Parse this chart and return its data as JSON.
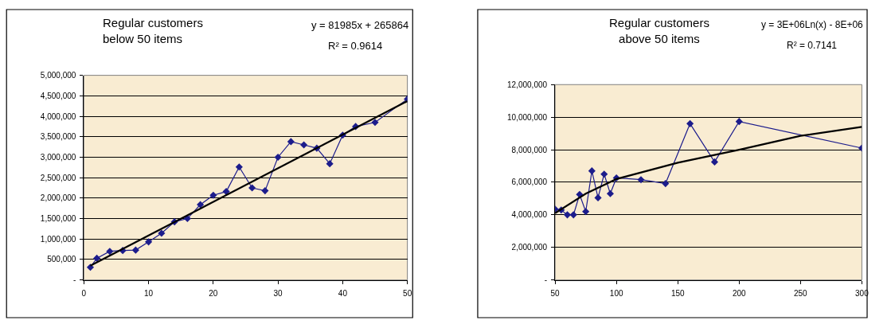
{
  "chart_data": [
    {
      "type": "line",
      "title": "Regular customers\nbelow 50 items",
      "annotations": [
        "y = 81985x + 265864",
        "R² = 0.9614"
      ],
      "xlim": [
        0,
        50
      ],
      "xticks": [
        0,
        10,
        20,
        30,
        40,
        50
      ],
      "ylim": [
        0,
        5000000
      ],
      "yticks": [
        {
          "value": 0,
          "label": "-"
        },
        {
          "value": 500000,
          "label": "500,000"
        },
        {
          "value": 1000000,
          "label": "1,000,000"
        },
        {
          "value": 1500000,
          "label": "1,500,000"
        },
        {
          "value": 2000000,
          "label": "2,000,000"
        },
        {
          "value": 2500000,
          "label": "2,500,000"
        },
        {
          "value": 3000000,
          "label": "3,000,000"
        },
        {
          "value": 3500000,
          "label": "3,500,000"
        },
        {
          "value": 4000000,
          "label": "4,000,000"
        },
        {
          "value": 4500000,
          "label": "4,500,000"
        },
        {
          "value": 5000000,
          "label": "5,000,000"
        }
      ],
      "grid": "y",
      "series": [
        {
          "color": "#1c1c8c",
          "marker": "diamond",
          "line_style": "solid",
          "x": [
            1,
            2,
            4,
            6,
            8,
            10,
            12,
            14,
            16,
            18,
            20,
            22,
            24,
            26,
            28,
            30,
            32,
            34,
            36,
            38,
            40,
            42,
            45,
            50
          ],
          "values": [
            310000,
            530000,
            700000,
            720000,
            730000,
            930000,
            1140000,
            1420000,
            1500000,
            1840000,
            2070000,
            2160000,
            2760000,
            2250000,
            2180000,
            3000000,
            3380000,
            3300000,
            3220000,
            2840000,
            3540000,
            3750000,
            3850000,
            4420000
          ]
        },
        {
          "type": "line",
          "color": "#000000",
          "marker": "none",
          "line_style": "solid",
          "x": [
            1,
            50
          ],
          "values": [
            350000,
            4370000
          ]
        }
      ]
    },
    {
      "type": "line",
      "title": "Regular customers\nabove 50 items",
      "annotations": [
        "y = 3E+06Ln(x) - 8E+06",
        "R² = 0.7141"
      ],
      "xlim": [
        50,
        300
      ],
      "xticks": [
        50,
        100,
        150,
        200,
        250,
        300
      ],
      "ylim": [
        0,
        12000000
      ],
      "yticks": [
        {
          "value": 0,
          "label": "-"
        },
        {
          "value": 2000000,
          "label": "2,000,000"
        },
        {
          "value": 4000000,
          "label": "4,000,000"
        },
        {
          "value": 6000000,
          "label": "6,000,000"
        },
        {
          "value": 8000000,
          "label": "8,000,000"
        },
        {
          "value": 10000000,
          "label": "10,000,000"
        },
        {
          "value": 12000000,
          "label": "12,000,000"
        }
      ],
      "grid": "y",
      "series": [
        {
          "color": "#1c1c8c",
          "marker": "diamond",
          "line_style": "solid",
          "x": [
            50,
            55,
            60,
            65,
            70,
            75,
            80,
            85,
            90,
            95,
            100,
            120,
            140,
            160,
            180,
            200,
            300
          ],
          "values": [
            4350000,
            4300000,
            4000000,
            4000000,
            5250000,
            4200000,
            6700000,
            5050000,
            6500000,
            5300000,
            6270000,
            6160000,
            5920000,
            9600000,
            7250000,
            9730000,
            8100000
          ]
        },
        {
          "type": "line",
          "color": "#000000",
          "marker": "none",
          "line_style": "solid",
          "x": [
            50,
            75,
            100,
            150,
            200,
            250,
            300
          ],
          "values": [
            4100000,
            5300000,
            6200000,
            7200000,
            8000000,
            8850000,
            9400000
          ]
        }
      ]
    }
  ]
}
